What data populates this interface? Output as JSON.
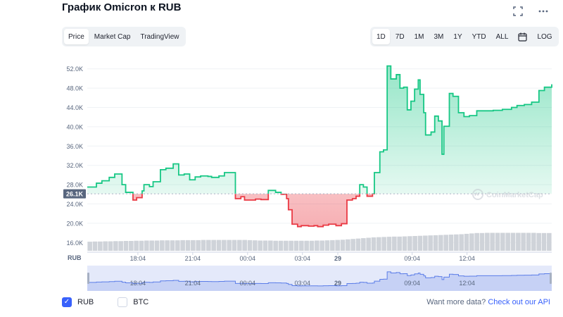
{
  "header": {
    "title": "График Omicron к RUB"
  },
  "icons": {
    "fullscreen": "fullscreen-icon",
    "more": "more-icon",
    "calendar": "calendar-icon",
    "watermark": "coinmarketcap-logo"
  },
  "tabs": [
    {
      "label": "Price",
      "active": true
    },
    {
      "label": "Market Cap",
      "active": false
    },
    {
      "label": "TradingView",
      "active": false
    }
  ],
  "ranges": [
    {
      "label": "1D",
      "active": true
    },
    {
      "label": "7D",
      "active": false
    },
    {
      "label": "1M",
      "active": false
    },
    {
      "label": "3M",
      "active": false
    },
    {
      "label": "1Y",
      "active": false
    },
    {
      "label": "YTD",
      "active": false
    },
    {
      "label": "ALL",
      "active": false
    }
  ],
  "log_label": "LOG",
  "chart_data": {
    "type": "line",
    "title": "График Omicron к RUB",
    "ylim": [
      14000,
      54000
    ],
    "yticks": [
      16000,
      20000,
      24000,
      28000,
      32000,
      36000,
      40000,
      44000,
      48000,
      52000
    ],
    "ytick_labels": [
      "16.0K",
      "20.0K",
      "24.0K",
      "28.0K",
      "32.0K",
      "36.0K",
      "40.0K",
      "44.0K",
      "48.0K",
      "52.0K"
    ],
    "y_unit_label": "RUB",
    "xlim": [
      15.3,
      40.7
    ],
    "xticks": [
      18.067,
      21.067,
      24.067,
      27.067,
      29,
      33.067,
      36.067
    ],
    "xtick_labels": [
      "18:04",
      "21:04",
      "00:04",
      "03:04",
      "29",
      "09:04",
      "12:04"
    ],
    "baseline": 26100,
    "current_price_label": "26.1K",
    "up_color": "#16c784",
    "down_color": "#ea3943",
    "volume_color": "#cfd3d9",
    "watermark": "CoinMarketCap",
    "series": [
      {
        "x": [
          15.3,
          15.8,
          16.1,
          16.5,
          16.8,
          17.2,
          17.4,
          17.8,
          18.0,
          18.3,
          18.4,
          18.7,
          18.9,
          19.3,
          19.6,
          20.0,
          20.3,
          20.6,
          20.9,
          21.2,
          21.5,
          21.9,
          22.1,
          22.5,
          22.8,
          23.2,
          23.4,
          23.7,
          23.9,
          24.1,
          24.5,
          24.8,
          25.2,
          25.6,
          25.9,
          26.2,
          26.3,
          26.5,
          26.8,
          27.0,
          27.4,
          27.7,
          27.9,
          28.2,
          28.5,
          28.9,
          29.2,
          29.5,
          29.8,
          30.0,
          30.2,
          30.4,
          30.6,
          30.9,
          31.0,
          31.3,
          31.5,
          31.7,
          31.9,
          32.2,
          32.4,
          32.6,
          32.8,
          33.0,
          33.2,
          33.4,
          33.5,
          33.7,
          33.8,
          34.1,
          34.3,
          34.5,
          34.7,
          34.8,
          35.1,
          35.3,
          35.6,
          35.9,
          36.2,
          36.6,
          37.0,
          37.5,
          38.0,
          38.5,
          38.8,
          39.2,
          39.6,
          40.0,
          40.3,
          40.7
        ],
        "y": [
          27500,
          28300,
          28800,
          29500,
          30200,
          28000,
          26400,
          24800,
          25300,
          26700,
          28000,
          27600,
          28600,
          31100,
          31400,
          32300,
          30000,
          30200,
          29000,
          29600,
          29800,
          29700,
          29500,
          29800,
          30500,
          30500,
          25100,
          25500,
          24800,
          24800,
          25000,
          24900,
          26800,
          26400,
          26000,
          25100,
          22800,
          19800,
          19300,
          19500,
          19400,
          19500,
          19300,
          19600,
          19800,
          19500,
          19900,
          24800,
          25100,
          25600,
          28000,
          27500,
          25600,
          26100,
          30500,
          34800,
          35200,
          52600,
          49900,
          50800,
          48000,
          48200,
          43500,
          45300,
          47800,
          49700,
          46700,
          42900,
          38300,
          38900,
          42200,
          41200,
          34300,
          40100,
          46900,
          46300,
          42900,
          42100,
          42300,
          43300,
          43300,
          43400,
          43600,
          44000,
          44400,
          44600,
          45100,
          47500,
          48200,
          48800
        ]
      }
    ],
    "volume": [
      0.46,
      0.47,
      0.47,
      0.48,
      0.48,
      0.49,
      0.49,
      0.5,
      0.5,
      0.51,
      0.51,
      0.52,
      0.52,
      0.52,
      0.53,
      0.53,
      0.53,
      0.53,
      0.54,
      0.54,
      0.54,
      0.54,
      0.55,
      0.55,
      0.55,
      0.55,
      0.55,
      0.55,
      0.55,
      0.55,
      0.55,
      0.54,
      0.53,
      0.52,
      0.52,
      0.52,
      0.51,
      0.51,
      0.51,
      0.51,
      0.51,
      0.51,
      0.51,
      0.51,
      0.52,
      0.52,
      0.53,
      0.54,
      0.55,
      0.56,
      0.58,
      0.6,
      0.62,
      0.64,
      0.66,
      0.68,
      0.69,
      0.7,
      0.71,
      0.72,
      0.72,
      0.73,
      0.74,
      0.75,
      0.76,
      0.77,
      0.78,
      0.79,
      0.8,
      0.81,
      0.82,
      0.83,
      0.84,
      0.86,
      0.88,
      0.9,
      0.9,
      0.91,
      0.91,
      0.91,
      0.91,
      0.91,
      0.91,
      0.91,
      0.91,
      0.91,
      0.91,
      0.9,
      0.9,
      0.9
    ]
  },
  "navigator": {
    "labels": [
      "18:04",
      "21:04",
      "00:04",
      "03:04",
      "29",
      "09:04",
      "12:04"
    ],
    "mask_color": "#c9d3f5"
  },
  "legend": [
    {
      "label": "RUB",
      "checked": true
    },
    {
      "label": "BTC",
      "checked": false
    }
  ],
  "footer": {
    "prompt": "Want more data?",
    "link": "Check out our API"
  }
}
